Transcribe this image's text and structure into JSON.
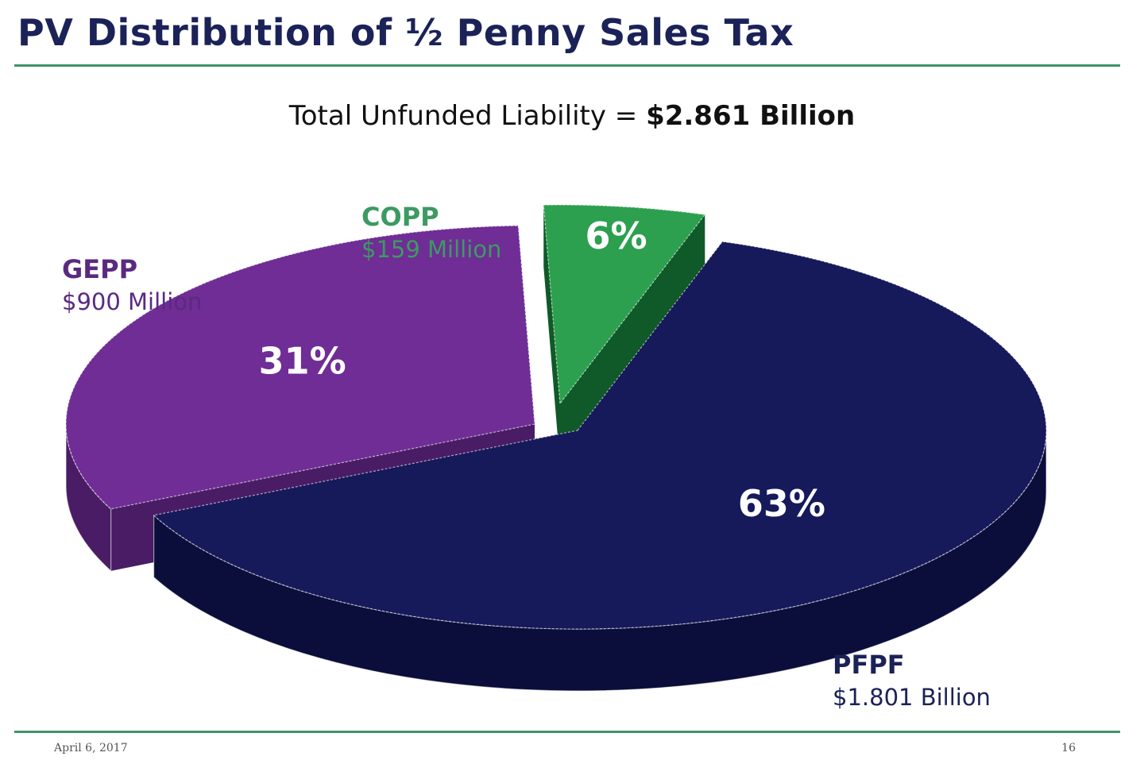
{
  "title": "PV Distribution of ½ Penny Sales Tax",
  "subtitle": {
    "prefix": "Total Unfunded Liability = ",
    "value": "$2.861 Billion"
  },
  "footer": {
    "date": "April 6, 2017",
    "page": "16"
  },
  "chart_data": {
    "type": "pie",
    "style": "3d-exploded",
    "total_label": "Total Unfunded Liability = $2.861 Billion",
    "categories": [
      "PFPF",
      "GEPP",
      "COPP"
    ],
    "values": [
      1.801,
      0.9,
      0.159
    ],
    "unit": "Billion USD",
    "slices": [
      {
        "name": "PFPF",
        "amount_label": "$1.801 Billion",
        "percent_label": "63%",
        "percent": 63,
        "color": "#16195a",
        "side_color": "#0b0d3a",
        "label_color": "#1b2257"
      },
      {
        "name": "GEPP",
        "amount_label": "$900 Million",
        "percent_label": "31%",
        "percent": 31,
        "color": "#6f2d95",
        "side_color": "#4a1c66",
        "label_color": "#5a2a80"
      },
      {
        "name": "COPP",
        "amount_label": "$159 Million",
        "percent_label": "6%",
        "percent": 6,
        "color": "#2ca04f",
        "side_color": "#0f5a28",
        "label_color": "#3c9a62"
      }
    ]
  }
}
